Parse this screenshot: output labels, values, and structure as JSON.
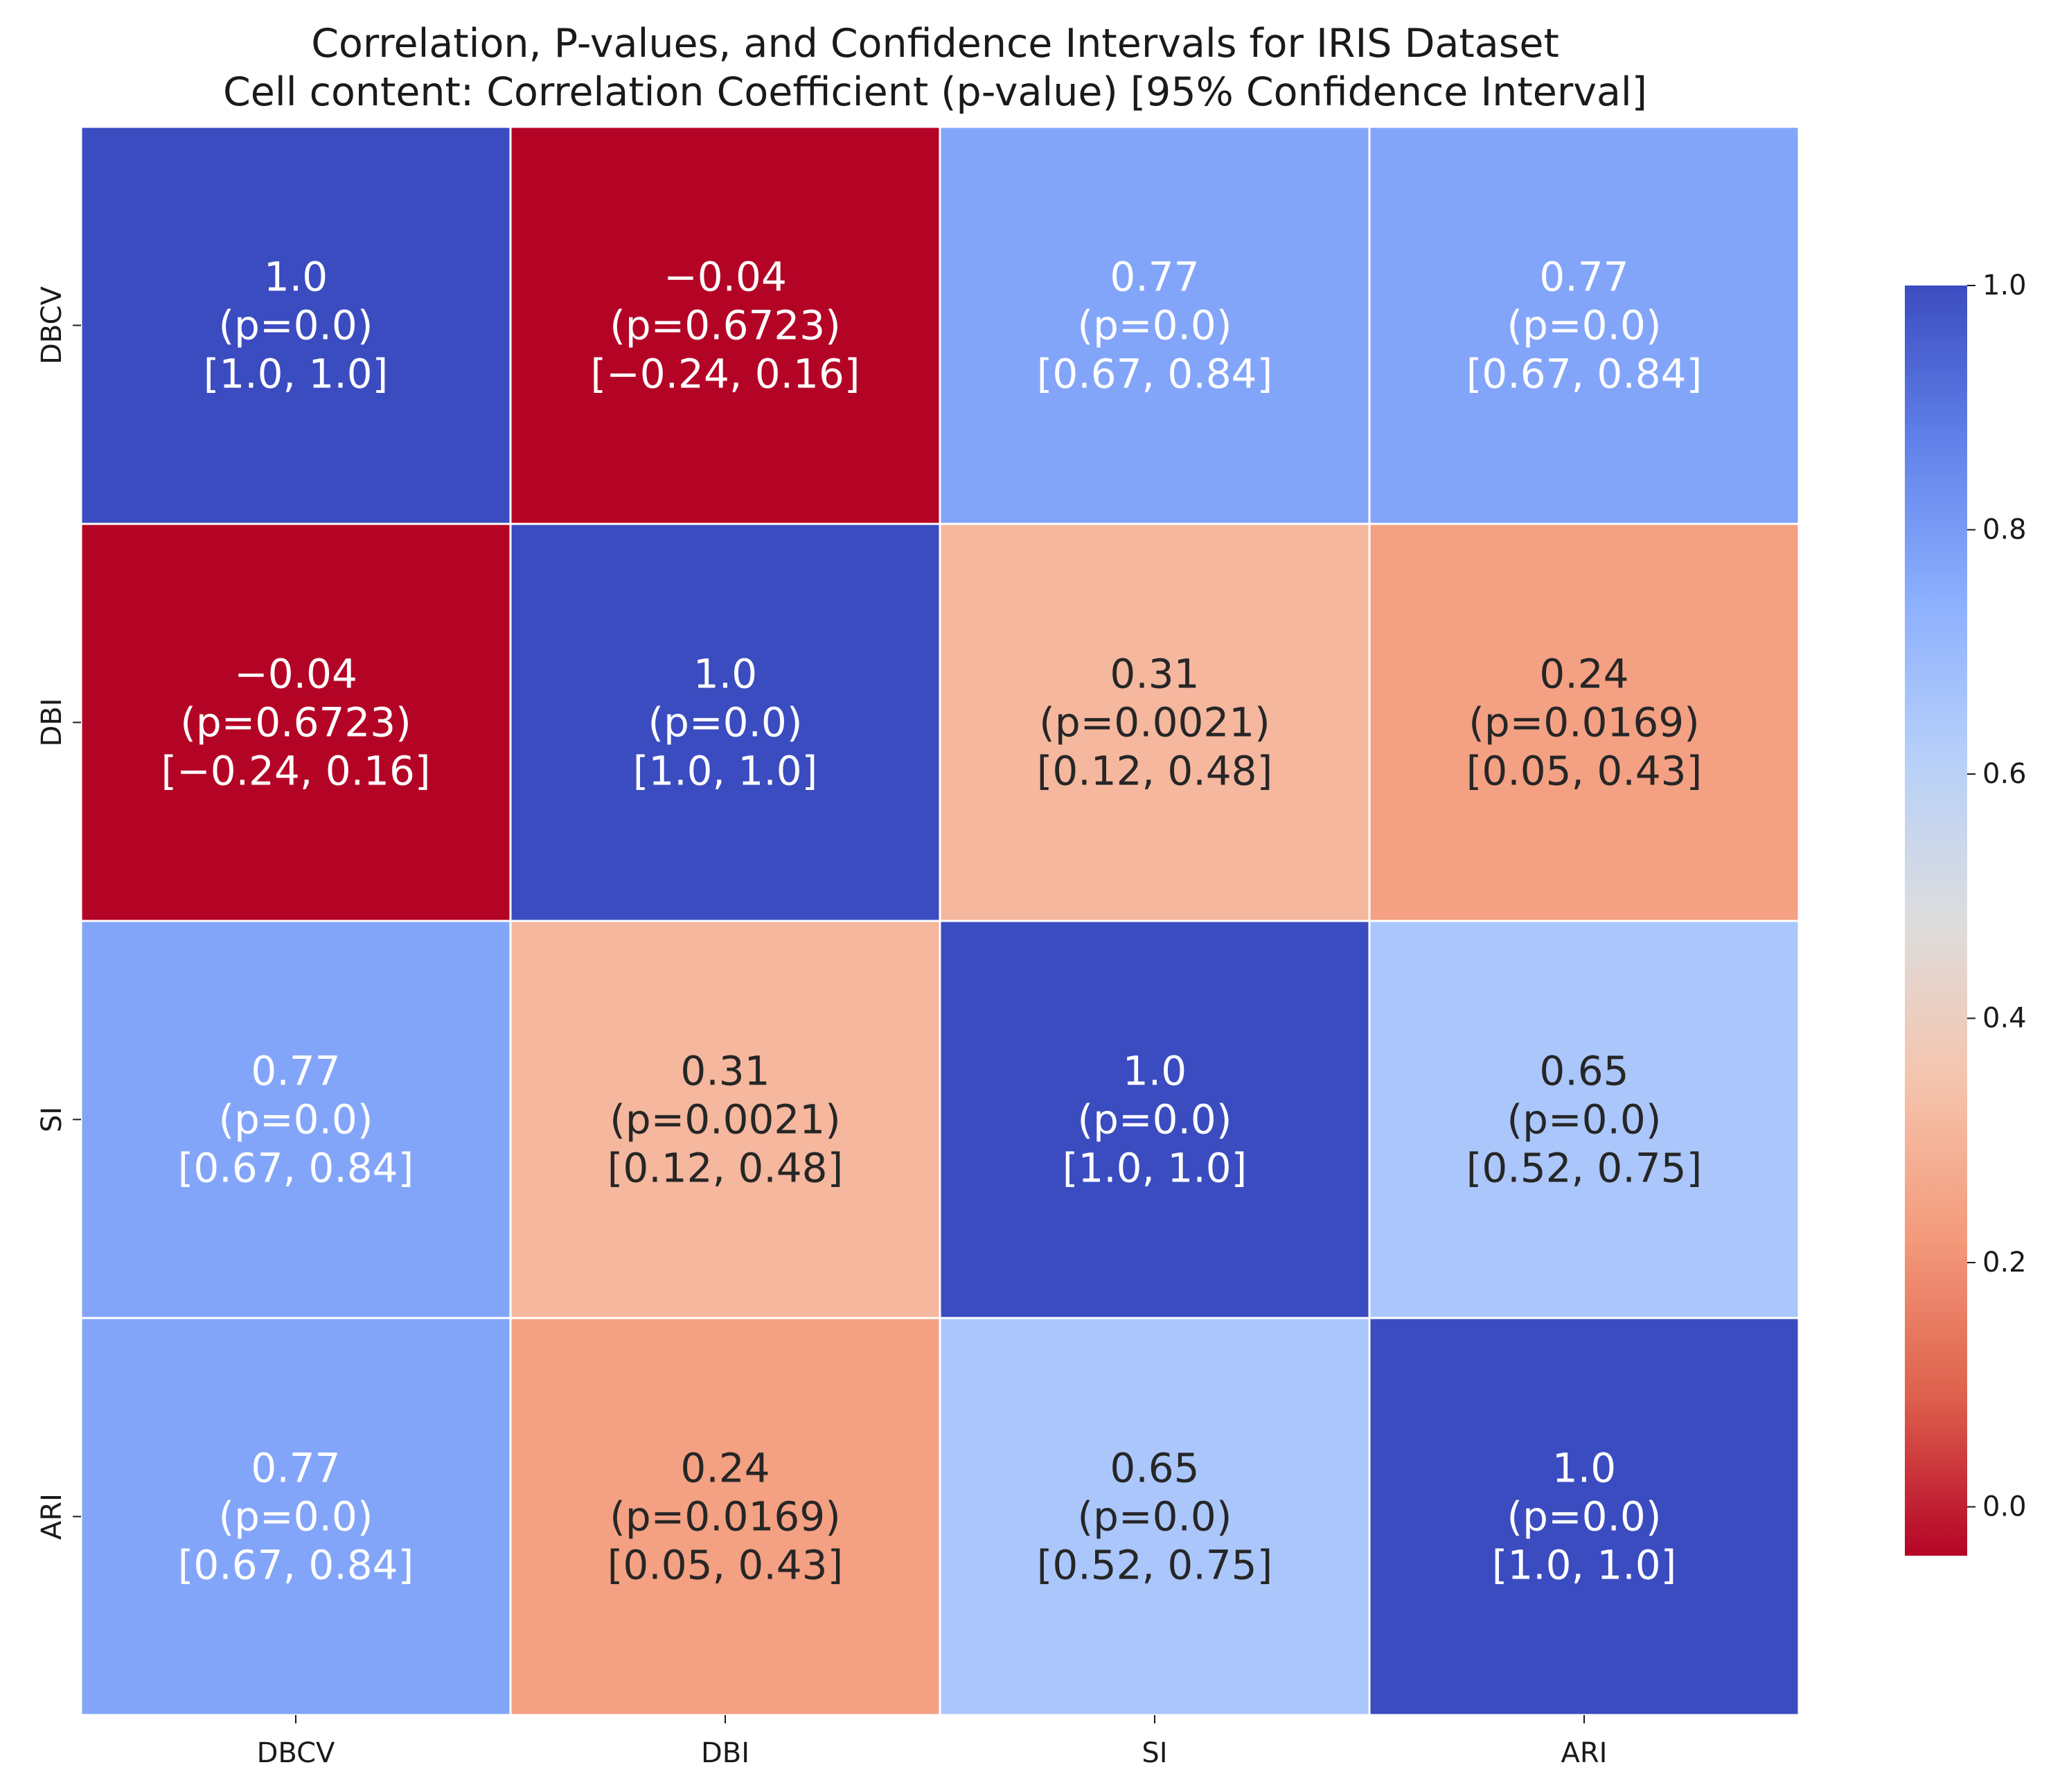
{
  "chart_data": {
    "type": "heatmap",
    "title": "Correlation, P-values, and Confidence Intervals for IRIS Dataset",
    "subtitle": "Cell content: Correlation Coefficient (p-value) [95% Confidence Interval]",
    "xlabel": "",
    "ylabel": "",
    "x_labels": [
      "DBCV",
      "DBI",
      "SI",
      "ARI"
    ],
    "y_labels": [
      "DBCV",
      "DBI",
      "SI",
      "ARI"
    ],
    "values": [
      [
        1.0,
        -0.04,
        0.77,
        0.77
      ],
      [
        -0.04,
        1.0,
        0.31,
        0.24
      ],
      [
        0.77,
        0.31,
        1.0,
        0.65
      ],
      [
        0.77,
        0.24,
        0.65,
        1.0
      ]
    ],
    "cell_text": [
      [
        [
          "1.0",
          "(p=0.0)",
          "[1.0, 1.0]"
        ],
        [
          "−0.04",
          "(p=0.6723)",
          "[−0.24, 0.16]"
        ],
        [
          "0.77",
          "(p=0.0)",
          "[0.67, 0.84]"
        ],
        [
          "0.77",
          "(p=0.0)",
          "[0.67, 0.84]"
        ]
      ],
      [
        [
          "−0.04",
          "(p=0.6723)",
          "[−0.24, 0.16]"
        ],
        [
          "1.0",
          "(p=0.0)",
          "[1.0, 1.0]"
        ],
        [
          "0.31",
          "(p=0.0021)",
          "[0.12, 0.48]"
        ],
        [
          "0.24",
          "(p=0.0169)",
          "[0.05, 0.43]"
        ]
      ],
      [
        [
          "0.77",
          "(p=0.0)",
          "[0.67, 0.84]"
        ],
        [
          "0.31",
          "(p=0.0021)",
          "[0.12, 0.48]"
        ],
        [
          "1.0",
          "(p=0.0)",
          "[1.0, 1.0]"
        ],
        [
          "0.65",
          "(p=0.0)",
          "[0.52, 0.75]"
        ]
      ],
      [
        [
          "0.77",
          "(p=0.0)",
          "[0.67, 0.84]"
        ],
        [
          "0.24",
          "(p=0.0169)",
          "[0.05, 0.43]"
        ],
        [
          "0.65",
          "(p=0.0)",
          "[0.52, 0.75]"
        ],
        [
          "1.0",
          "(p=0.0)",
          "[1.0, 1.0]"
        ]
      ]
    ],
    "colormap": "coolwarm_r",
    "vmin": -0.04,
    "vmax": 1.0,
    "colorbar": {
      "ticks": [
        0.0,
        0.2,
        0.4,
        0.6,
        0.8,
        1.0
      ],
      "tick_labels": [
        "0.0",
        "0.2",
        "0.4",
        "0.6",
        "0.8",
        "1.0"
      ],
      "placement": "right"
    },
    "grid": false,
    "colors": {
      "low": "#b40426",
      "mid": "#dddddd",
      "high": "#3b4cc0",
      "text_dark": "#262626",
      "text_light": "#ffffff",
      "cell_border": "#ffffff"
    }
  }
}
